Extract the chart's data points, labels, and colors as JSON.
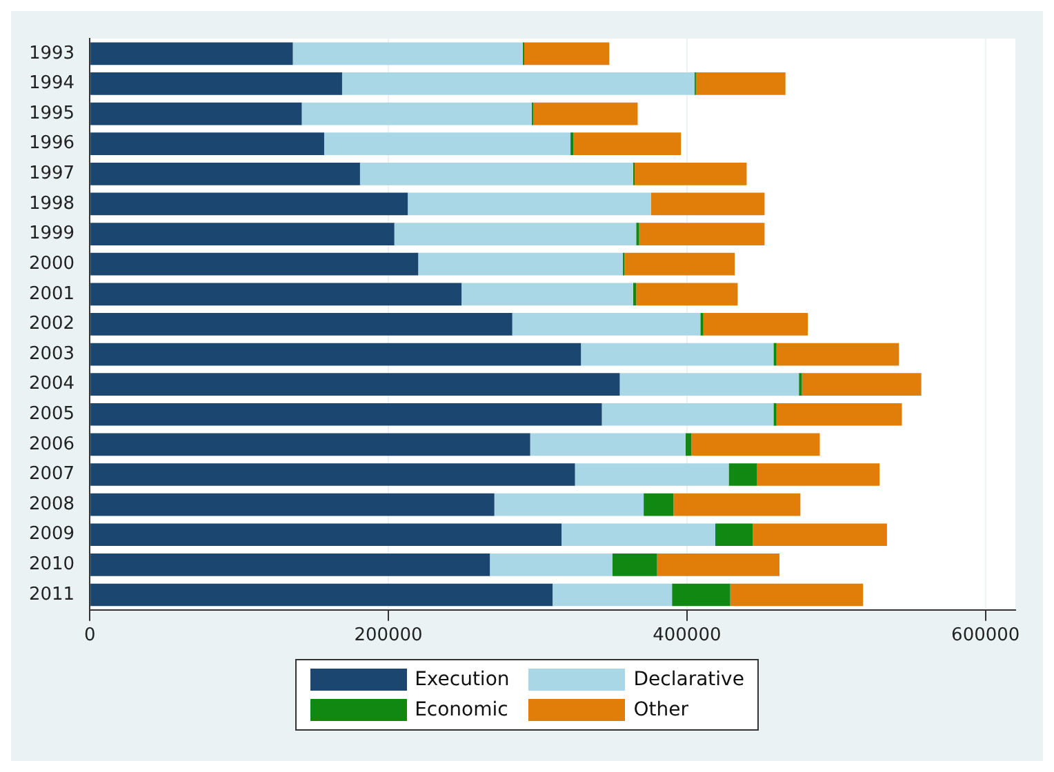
{
  "chart_data": {
    "type": "bar",
    "orientation": "horizontal",
    "stacked": true,
    "categories": [
      "1993",
      "1994",
      "1995",
      "1996",
      "1997",
      "1998",
      "1999",
      "2000",
      "2001",
      "2002",
      "2003",
      "2004",
      "2005",
      "2006",
      "2007",
      "2008",
      "2009",
      "2010",
      "2011"
    ],
    "series": [
      {
        "name": "Execution",
        "color": "#1b4670",
        "values": [
          136000,
          169000,
          142000,
          157000,
          181000,
          213000,
          204000,
          220000,
          249000,
          283000,
          329000,
          355000,
          343000,
          295000,
          325000,
          271000,
          316000,
          268000,
          310000
        ]
      },
      {
        "name": "Declarative",
        "color": "#aad7e5",
        "values": [
          154000,
          236000,
          154000,
          165000,
          183000,
          163000,
          162000,
          137000,
          115000,
          126000,
          129000,
          120000,
          115000,
          104000,
          103000,
          100000,
          103000,
          82000,
          80000
        ]
      },
      {
        "name": "Economic",
        "color": "#118811",
        "values": [
          1000,
          1000,
          1000,
          2000,
          1000,
          0,
          2000,
          1000,
          2000,
          2000,
          2000,
          2000,
          2000,
          4000,
          19000,
          20000,
          25000,
          30000,
          39000
        ]
      },
      {
        "name": "Other",
        "color": "#e17d09",
        "values": [
          57000,
          60000,
          70000,
          72000,
          75000,
          76000,
          84000,
          74000,
          68000,
          70000,
          82000,
          80000,
          84000,
          86000,
          82000,
          85000,
          90000,
          82000,
          89000
        ]
      }
    ],
    "xlim": [
      0,
      620000
    ],
    "xticks": [
      0,
      200000,
      400000,
      600000
    ],
    "grid": "x",
    "legend": "bottom"
  }
}
